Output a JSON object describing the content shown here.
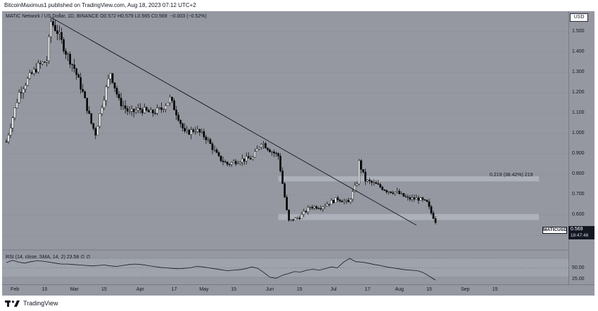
{
  "header": {
    "published_line": "BitcoinMaximus1 published on TradingView.com, Aug 18, 2023 07:12 UTC+2"
  },
  "legend": {
    "symbol_line": "MATIC Network / US Dollar, 1D, BINANCE",
    "ohlc": [
      {
        "label": "O",
        "value": "0.572"
      },
      {
        "label": "H",
        "value": "0.579"
      },
      {
        "label": "L",
        "value": "0.565"
      },
      {
        "label": "C",
        "value": "0.569"
      }
    ],
    "change": "−0.003 (−0.52%)"
  },
  "rsi_legend": {
    "text": "RSI (14, close, SMA, 14, 2)",
    "value_1": "23.58",
    "value_2": "∅",
    "value_3": "∅"
  },
  "price_scale": {
    "currency_button": "USD",
    "labels": [
      "1.500",
      "1.400",
      "1.300",
      "1.200",
      "1.100",
      "1.000",
      "0.900",
      "0.800",
      "0.700",
      "0.600",
      "0.500"
    ],
    "symbol_tag": "MATICUSD",
    "last_price": "0.569",
    "countdown": "18:47:48",
    "rsi_labels": [
      "50.00",
      "25.00"
    ]
  },
  "time_axis": {
    "labels": [
      "Feb",
      "15",
      "Mar",
      "15",
      "Apr",
      "17",
      "May",
      "15",
      "Jun",
      "15",
      "Jul",
      "17",
      "Aug",
      "15",
      "Sep",
      "15"
    ]
  },
  "annotation": {
    "measure_text": "0.219 (38.42%) 219"
  },
  "footer": {
    "brand": "TradingView"
  },
  "colors": {
    "background": "#9598a1",
    "candle_up": "#ffffff",
    "candle_down": "#000000",
    "zone_fill": "#b2b5be",
    "rsi_band": "#a7aab2"
  },
  "chart_data": {
    "type": "candlestick",
    "instrument": "MATICUSD",
    "timeframe": "1D",
    "ylim": [
      0.47,
      1.6
    ],
    "x_start": "2023-01-28",
    "close_series": [
      {
        "date": "2023-01-28",
        "close": 0.96
      },
      {
        "date": "2023-02-03",
        "close": 1.2
      },
      {
        "date": "2023-02-08",
        "close": 1.28
      },
      {
        "date": "2023-02-12",
        "close": 1.33
      },
      {
        "date": "2023-02-16",
        "close": 1.36
      },
      {
        "date": "2023-02-18",
        "close": 1.55
      },
      {
        "date": "2023-02-21",
        "close": 1.5
      },
      {
        "date": "2023-02-25",
        "close": 1.4
      },
      {
        "date": "2023-03-01",
        "close": 1.32
      },
      {
        "date": "2023-03-05",
        "close": 1.2
      },
      {
        "date": "2023-03-09",
        "close": 1.05
      },
      {
        "date": "2023-03-11",
        "close": 1.0
      },
      {
        "date": "2023-03-14",
        "close": 1.14
      },
      {
        "date": "2023-03-18",
        "close": 1.3
      },
      {
        "date": "2023-03-22",
        "close": 1.16
      },
      {
        "date": "2023-03-27",
        "close": 1.1
      },
      {
        "date": "2023-04-01",
        "close": 1.12
      },
      {
        "date": "2023-04-06",
        "close": 1.1
      },
      {
        "date": "2023-04-11",
        "close": 1.12
      },
      {
        "date": "2023-04-15",
        "close": 1.17
      },
      {
        "date": "2023-04-19",
        "close": 1.08
      },
      {
        "date": "2023-04-22",
        "close": 1.0
      },
      {
        "date": "2023-04-27",
        "close": 1.02
      },
      {
        "date": "2023-05-02",
        "close": 0.98
      },
      {
        "date": "2023-05-08",
        "close": 0.88
      },
      {
        "date": "2023-05-12",
        "close": 0.85
      },
      {
        "date": "2023-05-18",
        "close": 0.87
      },
      {
        "date": "2023-05-24",
        "close": 0.88
      },
      {
        "date": "2023-05-28",
        "close": 0.96
      },
      {
        "date": "2023-06-01",
        "close": 0.92
      },
      {
        "date": "2023-06-05",
        "close": 0.89
      },
      {
        "date": "2023-06-09",
        "close": 0.62
      },
      {
        "date": "2023-06-10",
        "close": 0.57
      },
      {
        "date": "2023-06-15",
        "close": 0.59
      },
      {
        "date": "2023-06-20",
        "close": 0.64
      },
      {
        "date": "2023-06-25",
        "close": 0.64
      },
      {
        "date": "2023-06-29",
        "close": 0.66
      },
      {
        "date": "2023-07-03",
        "close": 0.68
      },
      {
        "date": "2023-07-08",
        "close": 0.66
      },
      {
        "date": "2023-07-12",
        "close": 0.76
      },
      {
        "date": "2023-07-13",
        "close": 0.86
      },
      {
        "date": "2023-07-16",
        "close": 0.77
      },
      {
        "date": "2023-07-21",
        "close": 0.75
      },
      {
        "date": "2023-07-26",
        "close": 0.72
      },
      {
        "date": "2023-07-31",
        "close": 0.71
      },
      {
        "date": "2023-08-05",
        "close": 0.68
      },
      {
        "date": "2023-08-10",
        "close": 0.68
      },
      {
        "date": "2023-08-14",
        "close": 0.66
      },
      {
        "date": "2023-08-16",
        "close": 0.61
      },
      {
        "date": "2023-08-18",
        "close": 0.569
      }
    ],
    "trendline": {
      "from": {
        "date": "2023-02-18",
        "price": 1.57
      },
      "to": {
        "date": "2023-08-09",
        "price": 0.55
      }
    },
    "resistance_zone": [
      0.765,
      0.79
    ],
    "support_zone": [
      0.575,
      0.605
    ],
    "rsi": {
      "ylim": [
        15,
        85
      ],
      "last": 23.58,
      "values": [
        61,
        66,
        62,
        60,
        63,
        65,
        64,
        62,
        60,
        58,
        58,
        57,
        56,
        55,
        54,
        55,
        56,
        54,
        53,
        55,
        57,
        58,
        57,
        55,
        53,
        51,
        50,
        49,
        48,
        49,
        50,
        53,
        52,
        50,
        48,
        46,
        44,
        45,
        46,
        48,
        52,
        49,
        40,
        30,
        28,
        34,
        38,
        42,
        41,
        45,
        47,
        45,
        48,
        52,
        50,
        62,
        70,
        63,
        62,
        60,
        57,
        55,
        52,
        50,
        48,
        46,
        45,
        44,
        40,
        32,
        24
      ]
    }
  }
}
